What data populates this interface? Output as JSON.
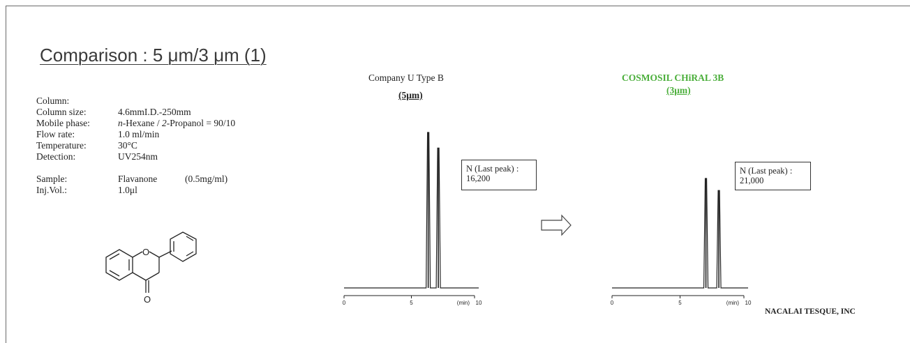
{
  "title": "Comparison : 5 μm/3 μm (1)",
  "conditions": [
    {
      "label": "Column:",
      "value": ""
    },
    {
      "label": "Column size:",
      "value": "4.6mmI.D.-250mm"
    },
    {
      "label": "Mobile phase:",
      "value": "n-Hexane / 2-Propanol = 90/10"
    },
    {
      "label": "Flow rate:",
      "value": "1.0 ml/min"
    },
    {
      "label": "Temperature:",
      "value": "30°C"
    },
    {
      "label": "Detection:",
      "value": "UV254nm"
    }
  ],
  "sample": {
    "label": "Sample:",
    "name": "Flavanone",
    "conc": "(0.5mg/ml)"
  },
  "injection": {
    "label": "Inj.Vol.:",
    "value": "1.0μl"
  },
  "structure": {
    "oxygen_label": "O"
  },
  "arrow_icon": "right-arrow-icon",
  "company": "NACALAI TESQUE, INC",
  "colors": {
    "highlight": "#4aae3a",
    "line": "#222222"
  },
  "chart_data": [
    {
      "type": "line",
      "title": "Company U   Type B",
      "subtitle": "(5μm)",
      "x_ticks": [
        "0",
        "5",
        "10"
      ],
      "x_unit_label": "(min)",
      "xlim": [
        0,
        10
      ],
      "peaks": [
        {
          "rt": 6.25,
          "height": 1.0
        },
        {
          "rt": 7.0,
          "height": 0.9
        }
      ],
      "annotation": {
        "line1": "N (Last peak) :",
        "line2": "16,200"
      }
    },
    {
      "type": "line",
      "title": "COSMOSIL CHiRAL 3B",
      "subtitle": "(3μm)",
      "x_ticks": [
        "0",
        "5",
        "10"
      ],
      "x_unit_label": "(min)",
      "xlim": [
        0,
        10
      ],
      "peaks": [
        {
          "rt": 6.9,
          "height": 1.0
        },
        {
          "rt": 7.85,
          "height": 0.89
        }
      ],
      "annotation": {
        "line1": "N (Last peak) :",
        "line2": "21,000"
      }
    }
  ]
}
